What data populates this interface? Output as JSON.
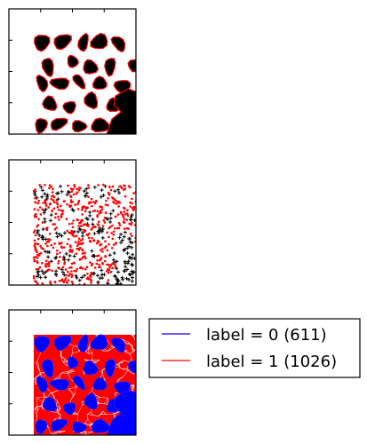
{
  "chart_data": [
    {
      "type": "scatter",
      "panel": "binary-mask-with-contours",
      "title": "",
      "xlabel": "",
      "ylabel": "",
      "tick_labels_visible": false,
      "series": [
        {
          "role": "foreground blobs",
          "color": "#000000",
          "fill": true
        },
        {
          "role": "blob contours",
          "color": "#ff0000",
          "fill": false
        }
      ]
    },
    {
      "type": "scatter",
      "panel": "sampled-points",
      "title": "",
      "xlabel": "",
      "ylabel": "",
      "tick_labels_visible": false,
      "series": [
        {
          "role": "sampled points",
          "color": "#ff0000",
          "marker": "dot"
        },
        {
          "role": "points inside blobs",
          "color": "#000000",
          "marker": "plus"
        }
      ]
    },
    {
      "type": "scatter",
      "panel": "labeled-triangulation",
      "title": "",
      "xlabel": "",
      "ylabel": "",
      "tick_labels_visible": false,
      "legend_position": "right",
      "series": [
        {
          "name": "label = 0 (611)",
          "label": 0,
          "count": 611,
          "color": "#0000ff"
        },
        {
          "name": "label = 1 (1026)",
          "label": 1,
          "count": 1026,
          "color": "#ff0000"
        }
      ]
    }
  ],
  "legend": {
    "items": [
      {
        "text": "label = 0 (611)",
        "color": "#0000ff"
      },
      {
        "text": "label = 1 (1026)",
        "color": "#ff0000"
      }
    ]
  }
}
